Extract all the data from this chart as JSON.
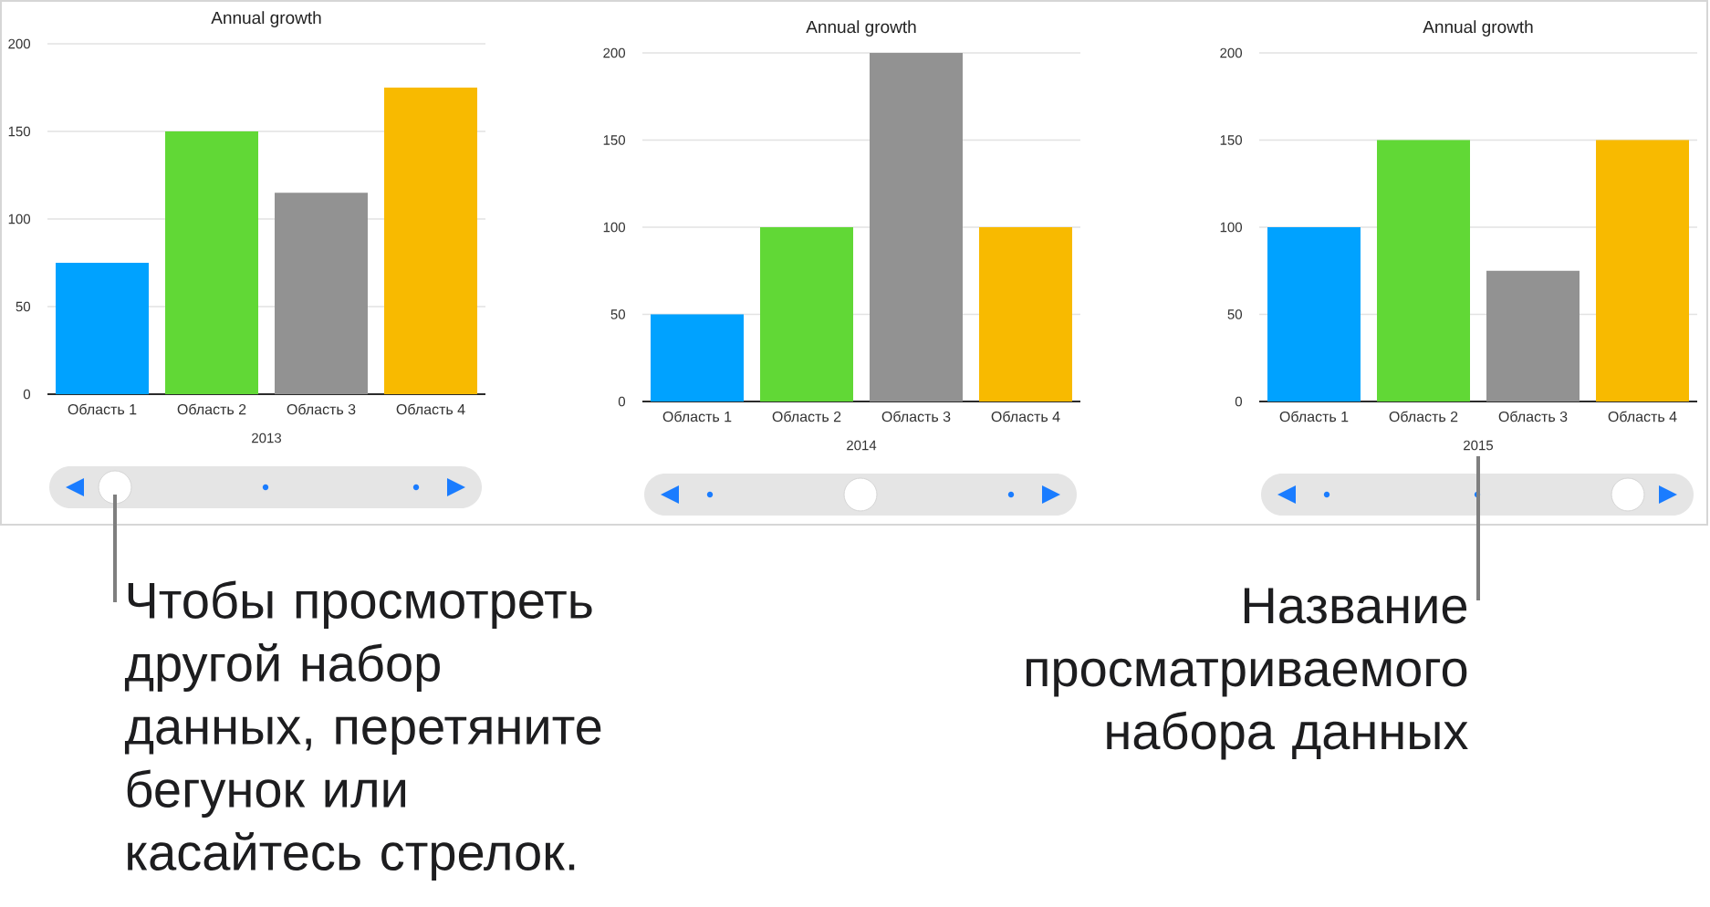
{
  "chart_data": [
    {
      "type": "bar",
      "title": "Annual growth",
      "xlabel": "2013",
      "categories": [
        "Область 1",
        "Область 2",
        "Область 3",
        "Область 4"
      ],
      "values": [
        75,
        150,
        115,
        175
      ],
      "colors": [
        "#00a2ff",
        "#61d836",
        "#929292",
        "#f8ba00"
      ],
      "ylim": [
        0,
        200
      ],
      "yticks": [
        0,
        50,
        100,
        150,
        200
      ],
      "grid": "y",
      "annotations": [
        "Чтобы просмотреть другой набор данных, перетяните бегунок или касайтесь стрелок."
      ]
    },
    {
      "type": "bar",
      "title": "Annual growth",
      "xlabel": "2014",
      "categories": [
        "Область 1",
        "Область 2",
        "Область 3",
        "Область 4"
      ],
      "values": [
        50,
        100,
        200,
        100
      ],
      "colors": [
        "#00a2ff",
        "#61d836",
        "#929292",
        "#f8ba00"
      ],
      "ylim": [
        0,
        200
      ],
      "yticks": [
        0,
        50,
        100,
        150,
        200
      ],
      "grid": "y"
    },
    {
      "type": "bar",
      "title": "Annual growth",
      "xlabel": "2015",
      "categories": [
        "Область 1",
        "Область 2",
        "Область 3",
        "Область 4"
      ],
      "values": [
        100,
        150,
        75,
        150
      ],
      "colors": [
        "#00a2ff",
        "#61d836",
        "#929292",
        "#f8ba00"
      ],
      "ylim": [
        0,
        200
      ],
      "yticks": [
        0,
        50,
        100,
        150,
        200
      ],
      "grid": "y",
      "annotations": [
        "Название просматриваемого набора данных"
      ]
    }
  ]
}
